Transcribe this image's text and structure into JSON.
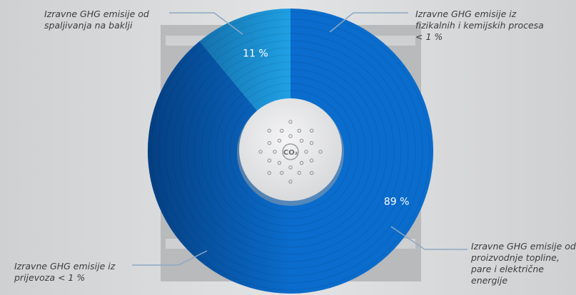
{
  "chart_data": {
    "type": "pie",
    "categories": [
      "Izravne GHG emisije od proizvodnje topline, pare i električne energije",
      "Izravne GHG emisije od spaljivanja na baklji"
    ],
    "values": [
      89,
      11
    ],
    "value_labels": [
      "89 %",
      "11 %"
    ],
    "colors": [
      "#0a6ccc",
      "#1fa0e4"
    ],
    "annotations": [
      "Izravne GHG emisije iz fizikalnih i kemijskih procesa < 1 %",
      "Izravne GHG emisije iz prijevoza < 1 %"
    ],
    "icon_label": "CO₂"
  }
}
